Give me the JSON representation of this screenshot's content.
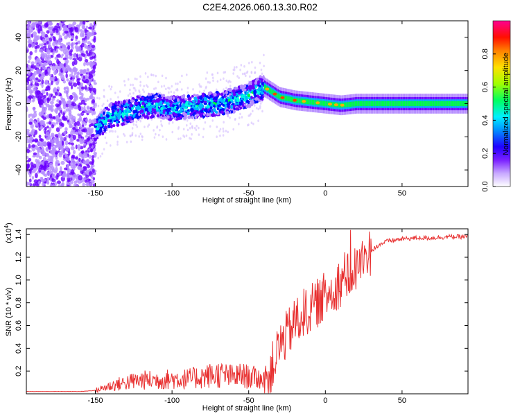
{
  "title": "C2E4.2026.060.13.30.R02",
  "chart_data": [
    {
      "type": "heatmap",
      "xlabel": "Height of straight line (km)",
      "ylabel": "Frequency (Hz)",
      "xlim": [
        -195,
        93
      ],
      "ylim": [
        -50,
        50
      ],
      "xticks": [
        -150,
        -100,
        -50,
        0,
        50
      ],
      "yticks": [
        -40,
        -20,
        0,
        20,
        40
      ],
      "colorbar": {
        "label": "Normalized spectral amplitude",
        "range": [
          0,
          1
        ],
        "ticks": [
          0.0,
          0.2,
          0.4,
          0.6,
          0.8
        ],
        "tick_labels": [
          "0.0",
          "0.2",
          "0.4",
          "0.6",
          "0.8"
        ],
        "colors": [
          "#ffffff",
          "#b58cff",
          "#6a00ff",
          "#0010ff",
          "#00b4ff",
          "#00ffe0",
          "#00ff40",
          "#a0ff00",
          "#ffee00",
          "#ff9000",
          "#ff2000",
          "#ff0090"
        ]
      },
      "ridge": {
        "x": [
          -150,
          -140,
          -130,
          -120,
          -110,
          -100,
          -90,
          -80,
          -70,
          -60,
          -50,
          -45,
          -40,
          -30,
          -20,
          -10,
          0,
          10,
          20,
          50,
          93
        ],
        "frequency": [
          -15,
          -7,
          -5,
          -2,
          -1,
          -3,
          -2,
          -1,
          0,
          2,
          5,
          8,
          10,
          4,
          2,
          1,
          0,
          -1,
          0,
          0,
          0
        ]
      }
    },
    {
      "type": "line",
      "xlabel": "Height of straight line (km)",
      "ylabel": "SNR (10 * v/v)",
      "y_multiplier": "(x10",
      "y_exponent": "4",
      "y_multiplier_close": ")",
      "xlim": [
        -195,
        93
      ],
      "ylim": [
        0,
        1.45
      ],
      "xticks": [
        -150,
        -100,
        -50,
        0,
        50
      ],
      "yticks": [
        0.2,
        0.4,
        0.6,
        0.8,
        1.0,
        1.2,
        1.4
      ],
      "ytick_labels": [
        "0.2",
        "0.4",
        "0.6",
        "0.8",
        "1.0",
        "1.2",
        "1.4"
      ],
      "color": "#e83030",
      "series": [
        {
          "name": "SNR",
          "x": [
            -195,
            -160,
            -150,
            -140,
            -130,
            -120,
            -110,
            -100,
            -90,
            -80,
            -70,
            -60,
            -55,
            -50,
            -45,
            -40,
            -35,
            -30,
            -25,
            -20,
            -15,
            -10,
            -5,
            0,
            5,
            10,
            15,
            20,
            25,
            30,
            35,
            40,
            50,
            60,
            70,
            80,
            93
          ],
          "y": [
            0.02,
            0.02,
            0.03,
            0.07,
            0.1,
            0.12,
            0.12,
            0.13,
            0.13,
            0.15,
            0.17,
            0.15,
            0.16,
            0.15,
            0.14,
            0.12,
            0.22,
            0.42,
            0.52,
            0.62,
            0.7,
            0.74,
            0.8,
            0.86,
            0.92,
            0.98,
            1.04,
            1.1,
            1.18,
            1.26,
            1.31,
            1.34,
            1.36,
            1.37,
            1.37,
            1.38,
            1.38
          ]
        }
      ]
    }
  ]
}
